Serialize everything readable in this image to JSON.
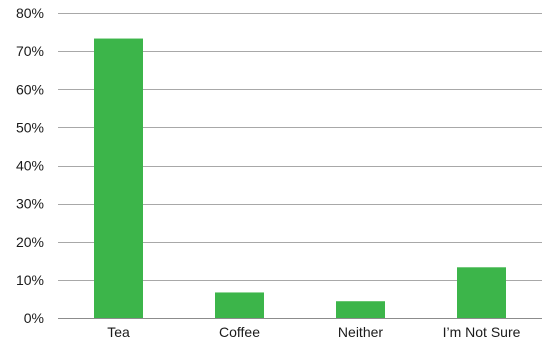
{
  "chart_data": {
    "type": "bar",
    "categories": [
      "Tea",
      "Coffee",
      "Neither",
      "I’m Not Sure"
    ],
    "values": [
      73.3,
      6.7,
      4.4,
      13.3
    ],
    "ylim": [
      0,
      80
    ],
    "yticks": [
      0,
      10,
      20,
      30,
      40,
      50,
      60,
      70,
      80
    ],
    "ytick_labels": [
      "0%",
      "10%",
      "20%",
      "30%",
      "40%",
      "50%",
      "60%",
      "70%",
      "80%"
    ],
    "grid": true,
    "legend": "none",
    "colors": {
      "bar": "#3cb54a",
      "grid": "#a8a8a8",
      "text": "#1a1a1a"
    }
  }
}
